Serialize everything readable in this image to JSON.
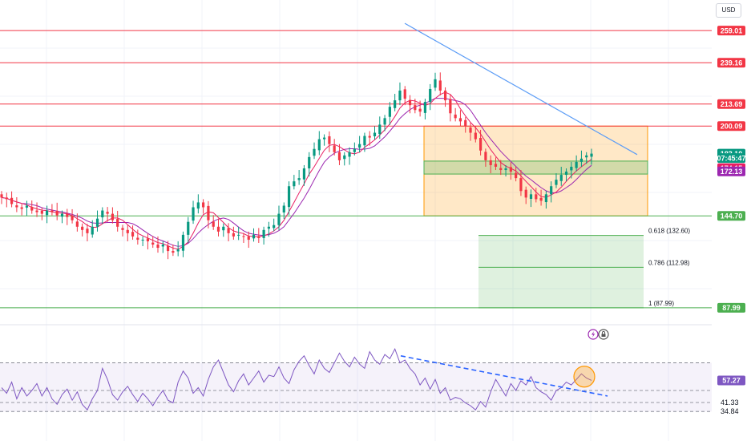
{
  "header": {
    "currency_label": "USD"
  },
  "chart_data": {
    "type": "candlestick",
    "price_panel": {
      "ylim": [
        80,
        268
      ],
      "price_levels": [
        {
          "name": "resistance-259",
          "value": 259.01,
          "label": "259.01",
          "color": "#f23645"
        },
        {
          "name": "resistance-239",
          "value": 239.16,
          "label": "239.16",
          "color": "#f23645"
        },
        {
          "name": "resistance-213",
          "value": 213.69,
          "label": "213.69",
          "color": "#f23645"
        },
        {
          "name": "resistance-200",
          "value": 200.09,
          "label": "200.09",
          "color": "#f23645"
        },
        {
          "name": "support-144",
          "value": 144.7,
          "label": "144.70",
          "color": "#4caf50"
        },
        {
          "name": "support-87",
          "value": 87.99,
          "label": "87.99",
          "color": "#4caf50"
        }
      ],
      "price_tags": [
        {
          "name": "last-price",
          "value": 183.1,
          "label": "183.10",
          "color": "#089981"
        },
        {
          "name": "countdown",
          "value": 180.4,
          "label": "07:45:47",
          "color": "#089981"
        },
        {
          "name": "ma-fast",
          "value": 174.15,
          "label": "174.15",
          "color": "#e91e63"
        },
        {
          "name": "ma-slow",
          "value": 172.13,
          "label": "172.13",
          "color": "#9c27b0"
        }
      ],
      "fibonacci": [
        {
          "ratio": "0.618",
          "value": 132.6,
          "label": "0.618 (132.60)"
        },
        {
          "ratio": "0.786",
          "value": 112.98,
          "label": "0.786 (112.98)"
        },
        {
          "ratio": "1",
          "value": 87.99,
          "label": "1 (87.99)"
        }
      ],
      "range_box": {
        "top": 200.09,
        "bottom": 144.7,
        "color": "#ff9800"
      },
      "inner_zone": {
        "top": 178.5,
        "bottom": 170.5,
        "color": "#4caf50"
      },
      "trendline": {
        "start": 263.5,
        "end": 182.5,
        "color": "#5b9cf6"
      },
      "ma_colors": {
        "fast": "#e91e63",
        "slow": "#9c27b0"
      },
      "up_color": "#089981",
      "down_color": "#f23645",
      "candle_count": 118,
      "closes": [
        156,
        155,
        152,
        150,
        149,
        151,
        148,
        147,
        146,
        148,
        147,
        145,
        146,
        144,
        142,
        138,
        136,
        134,
        138,
        143,
        148,
        146,
        142,
        138,
        136,
        134,
        132,
        130,
        130,
        129,
        127,
        125,
        127,
        123,
        122,
        124,
        133,
        141,
        150,
        153,
        150,
        142,
        138,
        135,
        138,
        134,
        132,
        133,
        132,
        130,
        133,
        131,
        136,
        138,
        139,
        146,
        151,
        163,
        166,
        168,
        174,
        181,
        186,
        192,
        193,
        189,
        184,
        179,
        182,
        184,
        186,
        189,
        194,
        193,
        196,
        201,
        205,
        212,
        216,
        222,
        217,
        213,
        210,
        209,
        215,
        223,
        229,
        222,
        216,
        208,
        205,
        203,
        200,
        196,
        192,
        185,
        179,
        176,
        175,
        173,
        174,
        172,
        168,
        160,
        156,
        158,
        155,
        154,
        158,
        163,
        167,
        170,
        172,
        175,
        178,
        180,
        182,
        183.1
      ]
    },
    "rsi_panel": {
      "ylim": [
        28,
        83
      ],
      "levels": [
        {
          "value": 70,
          "label": ""
        },
        {
          "value": 50,
          "label": ""
        },
        {
          "value": 41.33,
          "label": "41.33"
        },
        {
          "value": 34.84,
          "label": "34.84"
        }
      ],
      "current": {
        "value": 57.27,
        "label": "57.27",
        "color": "#7e57c2"
      },
      "line_color": "#7e57c2",
      "band_color": "#7e57c2",
      "trendline": {
        "start": 75.0,
        "end": 46.0,
        "color": "#2962ff"
      },
      "highlight": {
        "value": 60,
        "color": "#ff9800"
      },
      "values": [
        52,
        48,
        56,
        44,
        52,
        46,
        50,
        55,
        46,
        52,
        44,
        40,
        47,
        51,
        43,
        49,
        40,
        36,
        44,
        50,
        66,
        58,
        47,
        43,
        49,
        53,
        47,
        42,
        48,
        44,
        39,
        45,
        50,
        43,
        41,
        56,
        64,
        59,
        48,
        52,
        46,
        58,
        67,
        72,
        63,
        54,
        49,
        57,
        62,
        54,
        59,
        64,
        56,
        61,
        60,
        67,
        59,
        55,
        65,
        71,
        75,
        68,
        62,
        72,
        66,
        63,
        70,
        77,
        71,
        67,
        74,
        69,
        66,
        78,
        72,
        69,
        76,
        73,
        80,
        70,
        72,
        66,
        62,
        54,
        59,
        51,
        58,
        48,
        52,
        43,
        45,
        44,
        41,
        39,
        36,
        42,
        38,
        49,
        58,
        52,
        46,
        55,
        50,
        57,
        54,
        60,
        52,
        49,
        47,
        43,
        50,
        52,
        56,
        54,
        58,
        62,
        59,
        57.27
      ]
    }
  }
}
